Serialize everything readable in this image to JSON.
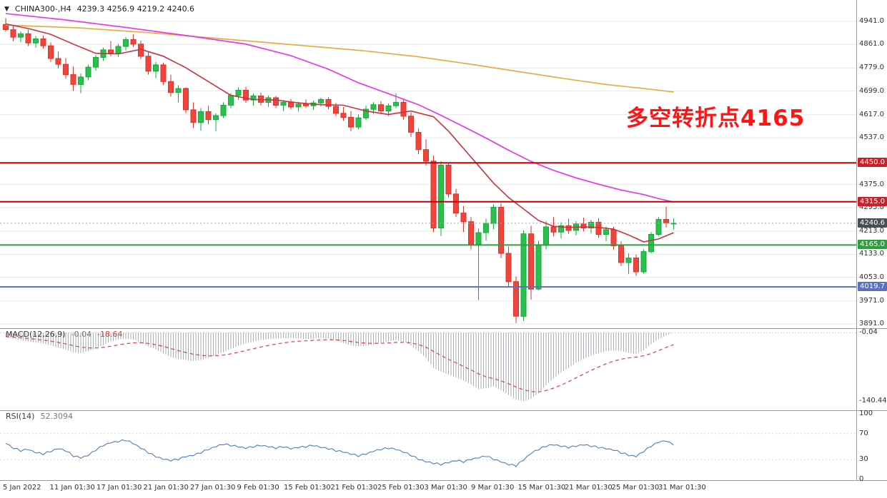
{
  "header": {
    "menu_icon": "▼",
    "symbol": "CHINA300-,H4",
    "ohlc": "4239.3 4256.9 4219.2 4240.6"
  },
  "annotation": {
    "text": "多空转折点4165"
  },
  "colors": {
    "up": "#17a83c",
    "up_fill": "#29c04e",
    "down": "#d6352c",
    "down_fill": "#f1453c",
    "ma_fast": "#c8323c",
    "ma_mid": "#ea30e8",
    "ma_slow": "#e8a83a",
    "macd_hist": "#a6adb5",
    "macd_signal": "#d64545",
    "rsi_line": "#4f7dbe",
    "grid": "#e8e8e8",
    "separator": "#9a9a9a",
    "annotation_red": "#ff1414"
  },
  "chart_data": [
    {
      "type": "candlestick",
      "name": "CHINA300-,H4",
      "timeframe": "H4",
      "ylim": [
        3874,
        5015
      ],
      "last_price": 4240.6,
      "price_ticks": [
        4941,
        4861,
        4779,
        4699,
        4617,
        4537,
        4375,
        4295,
        4213,
        4133,
        4053,
        3971,
        3891
      ],
      "time_labels": [
        "5 Jan 2022",
        "11 Jan 01:30",
        "17 Jan 01:30",
        "21 Jan 01:30",
        "27 Jan 01:30",
        "9 Feb 01:30",
        "15 Feb 01:30",
        "21 Feb 01:30",
        "25 Feb 01:30",
        "3 Mar 01:30",
        "9 Mar 01:30",
        "15 Mar 01:30",
        "21 Mar 01:30",
        "25 Mar 01:30",
        "31 Mar 01:30"
      ],
      "levels": [
        {
          "price": 4450.0,
          "color": "#c00000",
          "badge_bg": "#cc2026",
          "style": "solid"
        },
        {
          "price": 4315.0,
          "color": "#c00000",
          "badge_bg": "#cc2026",
          "style": "solid"
        },
        {
          "price": 4165.0,
          "color": "#2e9e3e",
          "badge_bg": "#2e9e3e",
          "style": "solid"
        },
        {
          "price": 4019.7,
          "color": "#5c71bd",
          "badge_bg": "#5c71bd",
          "style": "solid"
        },
        {
          "price": 4240.6,
          "color": "#a8a8a8",
          "badge_bg": "#474e54",
          "style": "dotted"
        }
      ],
      "moving_averages": [
        {
          "name": "ma-slow-orange",
          "color": "#e8a83a",
          "points": [
            [
              0,
              4928
            ],
            [
              10,
              4918
            ],
            [
              20,
              4900
            ],
            [
              30,
              4878
            ],
            [
              40,
              4856
            ],
            [
              48,
              4838
            ],
            [
              55,
              4818
            ],
            [
              62,
              4792
            ],
            [
              68,
              4768
            ],
            [
              74,
              4744
            ],
            [
              80,
              4722
            ],
            [
              85,
              4708
            ],
            [
              89,
              4696
            ]
          ]
        },
        {
          "name": "ma-mid-magenta",
          "color": "#ea30e8",
          "points": [
            [
              0,
              4968
            ],
            [
              8,
              4946
            ],
            [
              16,
              4920
            ],
            [
              24,
              4892
            ],
            [
              32,
              4862
            ],
            [
              38,
              4822
            ],
            [
              43,
              4775
            ],
            [
              47,
              4728
            ],
            [
              51,
              4690
            ],
            [
              55,
              4652
            ],
            [
              58,
              4615
            ],
            [
              61,
              4576
            ],
            [
              64,
              4536
            ],
            [
              67,
              4494
            ],
            [
              70,
              4455
            ],
            [
              73,
              4424
            ],
            [
              76,
              4398
            ],
            [
              79,
              4376
            ],
            [
              82,
              4356
            ],
            [
              85,
              4340
            ],
            [
              87,
              4326
            ],
            [
              89,
              4314
            ]
          ]
        },
        {
          "name": "ma-fast-red",
          "color": "#c8323c",
          "points": [
            [
              0,
              4932
            ],
            [
              3,
              4916
            ],
            [
              6,
              4896
            ],
            [
              9,
              4862
            ],
            [
              12,
              4830
            ],
            [
              15,
              4828
            ],
            [
              18,
              4844
            ],
            [
              21,
              4820
            ],
            [
              24,
              4780
            ],
            [
              27,
              4732
            ],
            [
              30,
              4684
            ],
            [
              33,
              4670
            ],
            [
              36,
              4668
            ],
            [
              39,
              4658
            ],
            [
              42,
              4652
            ],
            [
              45,
              4650
            ],
            [
              48,
              4630
            ],
            [
              51,
              4618
            ],
            [
              54,
              4630
            ],
            [
              57,
              4610
            ],
            [
              59,
              4560
            ],
            [
              61,
              4500
            ],
            [
              63,
              4440
            ],
            [
              65,
              4380
            ],
            [
              67,
              4330
            ],
            [
              69,
              4290
            ],
            [
              71,
              4250
            ],
            [
              73,
              4230
            ],
            [
              75,
              4226
            ],
            [
              77,
              4228
            ],
            [
              79,
              4226
            ],
            [
              81,
              4220
            ],
            [
              83,
              4200
            ],
            [
              85,
              4176
            ],
            [
              87,
              4186
            ],
            [
              89,
              4208
            ]
          ]
        }
      ],
      "ohlc": [
        [
          4930,
          4952,
          4905,
          4912
        ],
        [
          4912,
          4928,
          4872,
          4886
        ],
        [
          4886,
          4906,
          4868,
          4898
        ],
        [
          4898,
          4912,
          4855,
          4866
        ],
        [
          4866,
          4890,
          4850,
          4880
        ],
        [
          4880,
          4892,
          4846,
          4856
        ],
        [
          4856,
          4868,
          4800,
          4812
        ],
        [
          4812,
          4836,
          4778,
          4792
        ],
        [
          4792,
          4814,
          4742,
          4756
        ],
        [
          4756,
          4784,
          4700,
          4722
        ],
        [
          4722,
          4760,
          4692,
          4748
        ],
        [
          4748,
          4790,
          4736,
          4782
        ],
        [
          4782,
          4824,
          4770,
          4816
        ],
        [
          4816,
          4850,
          4804,
          4842
        ],
        [
          4842,
          4872,
          4820,
          4830
        ],
        [
          4830,
          4862,
          4818,
          4854
        ],
        [
          4854,
          4886,
          4840,
          4878
        ],
        [
          4878,
          4896,
          4852,
          4862
        ],
        [
          4862,
          4874,
          4810,
          4820
        ],
        [
          4820,
          4836,
          4756,
          4768
        ],
        [
          4768,
          4800,
          4744,
          4790
        ],
        [
          4790,
          4798,
          4720,
          4732
        ],
        [
          4732,
          4756,
          4680,
          4694
        ],
        [
          4694,
          4720,
          4660,
          4708
        ],
        [
          4708,
          4712,
          4622,
          4634
        ],
        [
          4634,
          4660,
          4572,
          4590
        ],
        [
          4590,
          4640,
          4562,
          4628
        ],
        [
          4628,
          4648,
          4584,
          4600
        ],
        [
          4600,
          4622,
          4560,
          4614
        ],
        [
          4614,
          4660,
          4606,
          4650
        ],
        [
          4650,
          4692,
          4640,
          4684
        ],
        [
          4684,
          4712,
          4668,
          4702
        ],
        [
          4702,
          4714,
          4658,
          4668
        ],
        [
          4668,
          4690,
          4648,
          4682
        ],
        [
          4682,
          4694,
          4650,
          4660
        ],
        [
          4660,
          4684,
          4644,
          4676
        ],
        [
          4676,
          4682,
          4640,
          4650
        ],
        [
          4650,
          4668,
          4630,
          4660
        ],
        [
          4660,
          4672,
          4636,
          4644
        ],
        [
          4644,
          4662,
          4628,
          4654
        ],
        [
          4654,
          4670,
          4640,
          4648
        ],
        [
          4648,
          4666,
          4634,
          4658
        ],
        [
          4658,
          4676,
          4646,
          4670
        ],
        [
          4670,
          4678,
          4636,
          4646
        ],
        [
          4646,
          4658,
          4612,
          4622
        ],
        [
          4622,
          4644,
          4596,
          4608
        ],
        [
          4608,
          4630,
          4560,
          4574
        ],
        [
          4574,
          4618,
          4566,
          4606
        ],
        [
          4606,
          4648,
          4598,
          4636
        ],
        [
          4636,
          4660,
          4620,
          4652
        ],
        [
          4652,
          4664,
          4618,
          4630
        ],
        [
          4630,
          4656,
          4612,
          4648
        ],
        [
          4648,
          4692,
          4640,
          4660
        ],
        [
          4660,
          4668,
          4600,
          4612
        ],
        [
          4612,
          4626,
          4540,
          4556
        ],
        [
          4556,
          4570,
          4480,
          4496
        ],
        [
          4496,
          4532,
          4440,
          4456
        ],
        [
          4456,
          4476,
          4210,
          4224
        ],
        [
          4224,
          4456,
          4196,
          4442
        ],
        [
          4442,
          4448,
          4330,
          4342
        ],
        [
          4342,
          4360,
          4262,
          4276
        ],
        [
          4276,
          4300,
          4210,
          4246
        ],
        [
          4246,
          4262,
          4150,
          4168
        ],
        [
          4168,
          4222,
          3974,
          4208
        ],
        [
          4208,
          4256,
          4180,
          4240
        ],
        [
          4240,
          4306,
          4220,
          4296
        ],
        [
          4296,
          4310,
          4120,
          4136
        ],
        [
          4136,
          4160,
          4020,
          4038
        ],
        [
          4038,
          4056,
          3894,
          3918
        ],
        [
          3918,
          4216,
          3902,
          4204
        ],
        [
          4204,
          4232,
          3976,
          4012
        ],
        [
          4012,
          4180,
          4008,
          4164
        ],
        [
          4164,
          4248,
          4150,
          4228
        ],
        [
          4228,
          4262,
          4196,
          4210
        ],
        [
          4210,
          4244,
          4188,
          4232
        ],
        [
          4232,
          4256,
          4204,
          4216
        ],
        [
          4216,
          4248,
          4198,
          4238
        ],
        [
          4238,
          4260,
          4212,
          4224
        ],
        [
          4224,
          4252,
          4206,
          4244
        ],
        [
          4244,
          4258,
          4190,
          4202
        ],
        [
          4202,
          4230,
          4178,
          4218
        ],
        [
          4218,
          4228,
          4150,
          4162
        ],
        [
          4162,
          4178,
          4092,
          4104
        ],
        [
          4104,
          4136,
          4064,
          4120
        ],
        [
          4120,
          4132,
          4058,
          4072
        ],
        [
          4072,
          4150,
          4066,
          4142
        ],
        [
          4142,
          4210,
          4136,
          4202
        ],
        [
          4202,
          4262,
          4196,
          4254
        ],
        [
          4254,
          4298,
          4226,
          4242
        ],
        [
          4239.3,
          4256.9,
          4219.2,
          4240.6
        ]
      ]
    },
    {
      "type": "bar",
      "name": "MACD(12,26,9)",
      "value_main": "-0.04",
      "value_signal": "-18.64",
      "ylim": [
        -155,
        8
      ],
      "axis_labels": [
        -0.04,
        -140.44
      ],
      "signal_period": 9,
      "values": [
        -8,
        -12,
        -15,
        -18,
        -20,
        -22,
        -26,
        -30,
        -35,
        -40,
        -42,
        -38,
        -32,
        -25,
        -18,
        -14,
        -12,
        -14,
        -20,
        -28,
        -34,
        -42,
        -50,
        -54,
        -56,
        -58,
        -56,
        -52,
        -46,
        -40,
        -33,
        -27,
        -22,
        -18,
        -15,
        -13,
        -12,
        -11,
        -11,
        -12,
        -13,
        -12,
        -11,
        -12,
        -16,
        -21,
        -26,
        -28,
        -27,
        -24,
        -21,
        -18,
        -15,
        -18,
        -26,
        -38,
        -52,
        -72,
        -80,
        -86,
        -92,
        -98,
        -106,
        -116,
        -114,
        -110,
        -118,
        -128,
        -138,
        -140.44,
        -136,
        -124,
        -108,
        -94,
        -82,
        -72,
        -62,
        -54,
        -47,
        -42,
        -38,
        -36,
        -38,
        -41,
        -44,
        -36,
        -24,
        -13,
        -5,
        -0.04
      ]
    },
    {
      "type": "line",
      "name": "RSI(14)",
      "value": "52.3094",
      "ylim": [
        0,
        100
      ],
      "levels": [
        30,
        70
      ],
      "axis_labels": [
        100,
        70,
        30,
        0
      ],
      "values": [
        55,
        48,
        44,
        46,
        41,
        39,
        43,
        47,
        44,
        36,
        33,
        37,
        45,
        52,
        56,
        58,
        60,
        55,
        48,
        41,
        35,
        31,
        29,
        31,
        35,
        37,
        41,
        46,
        50,
        54,
        52,
        50,
        48,
        50,
        52,
        50,
        48,
        50,
        47,
        49,
        50,
        52,
        49,
        47,
        44,
        42,
        39,
        36,
        39,
        43,
        46,
        48,
        46,
        42,
        37,
        31,
        27,
        25,
        23,
        26,
        29,
        27,
        31,
        33,
        36,
        31,
        27,
        23,
        21,
        30,
        40,
        46,
        51,
        53,
        51,
        49,
        51,
        53,
        51,
        49,
        47,
        45,
        41,
        37,
        35,
        43,
        51,
        57,
        59,
        52.31
      ]
    }
  ]
}
